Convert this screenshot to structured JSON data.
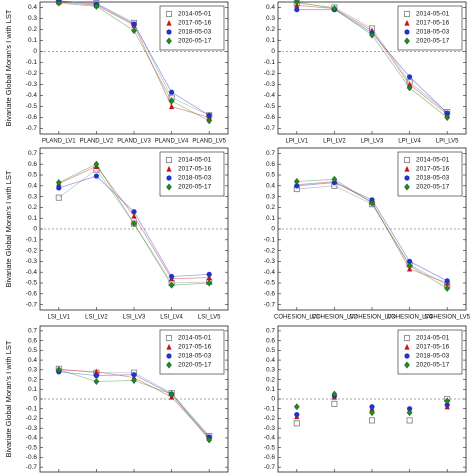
{
  "chart_data": [
    {
      "type": "line",
      "ylabel": "Bivariate Global Moran's I with LST",
      "legend": "upper right",
      "reference_line": 0,
      "categories": [
        "PLAND_LV1",
        "PLAND_LV2",
        "PLAND_LV3",
        "PLAND_LV4",
        "PLAND_LV5"
      ],
      "ylim": [
        -0.75,
        0.45
      ],
      "yticks": [
        -0.7,
        -0.6,
        -0.5,
        -0.4,
        -0.3,
        -0.2,
        -0.1,
        0,
        0.1,
        0.2,
        0.3,
        0.4
      ],
      "series": [
        {
          "name": "2014-05-01",
          "color": "#888888",
          "marker": "square",
          "values": [
            0.46,
            0.44,
            0.26,
            -0.42,
            -0.58
          ]
        },
        {
          "name": "2017-05-16",
          "color": "#cc1111",
          "marker": "triangle",
          "values": [
            0.45,
            0.42,
            0.24,
            -0.5,
            -0.6
          ]
        },
        {
          "name": "2018-05-03",
          "color": "#2233cc",
          "marker": "circle",
          "values": [
            0.46,
            0.43,
            0.25,
            -0.37,
            -0.58
          ]
        },
        {
          "name": "2020-05-17",
          "color": "#228822",
          "marker": "diamond",
          "values": [
            0.44,
            0.41,
            0.19,
            -0.45,
            -0.63
          ]
        }
      ]
    },
    {
      "type": "line",
      "legend": "upper right",
      "reference_line": 0,
      "categories": [
        "LPI_LV1",
        "LPI_LV2",
        "LPI_LV3",
        "LPI_LV4",
        "LPI_LV5"
      ],
      "ylim": [
        -0.75,
        0.45
      ],
      "yticks": [
        -0.7,
        -0.6,
        -0.5,
        -0.4,
        -0.3,
        -0.2,
        -0.1,
        0,
        0.1,
        0.2,
        0.3,
        0.4
      ],
      "series": [
        {
          "name": "2014-05-01",
          "color": "#888888",
          "marker": "square",
          "values": [
            0.44,
            0.4,
            0.21,
            -0.28,
            -0.55
          ]
        },
        {
          "name": "2017-05-16",
          "color": "#cc1111",
          "marker": "triangle",
          "values": [
            0.42,
            0.39,
            0.19,
            -0.3,
            -0.57
          ]
        },
        {
          "name": "2018-05-03",
          "color": "#2233cc",
          "marker": "circle",
          "values": [
            0.38,
            0.38,
            0.17,
            -0.23,
            -0.56
          ]
        },
        {
          "name": "2020-05-17",
          "color": "#228822",
          "marker": "diamond",
          "values": [
            0.45,
            0.39,
            0.15,
            -0.33,
            -0.6
          ]
        }
      ]
    },
    {
      "type": "line",
      "ylabel": "Bivariate Global Moran's I with LST",
      "legend": "upper right",
      "reference_line": 0,
      "categories": [
        "LSI_LV1",
        "LSI_LV2",
        "LSI_LV3",
        "LSI_LV4",
        "LSI_LV5"
      ],
      "ylim": [
        -0.75,
        0.75
      ],
      "yticks": [
        -0.7,
        -0.6,
        -0.5,
        -0.4,
        -0.3,
        -0.2,
        -0.1,
        0,
        0.1,
        0.2,
        0.3,
        0.4,
        0.5,
        0.6,
        0.7
      ],
      "series": [
        {
          "name": "2014-05-01",
          "color": "#888888",
          "marker": "square",
          "values": [
            0.29,
            0.55,
            0.05,
            -0.5,
            -0.49
          ]
        },
        {
          "name": "2017-05-16",
          "color": "#cc1111",
          "marker": "triangle",
          "values": [
            0.42,
            0.58,
            0.12,
            -0.46,
            -0.45
          ]
        },
        {
          "name": "2018-05-03",
          "color": "#2233cc",
          "marker": "circle",
          "values": [
            0.38,
            0.49,
            0.16,
            -0.44,
            -0.42
          ]
        },
        {
          "name": "2020-05-17",
          "color": "#228822",
          "marker": "diamond",
          "values": [
            0.43,
            0.6,
            0.05,
            -0.52,
            -0.5
          ]
        }
      ]
    },
    {
      "type": "line",
      "legend": "upper right",
      "reference_line": 0,
      "categories": [
        "COHESION_LV1",
        "COHESION_LV2",
        "COHESION_LV3",
        "COHESION_LV4",
        "COHESION_LV5"
      ],
      "ylim": [
        -0.75,
        0.75
      ],
      "yticks": [
        -0.7,
        -0.6,
        -0.5,
        -0.4,
        -0.3,
        -0.2,
        -0.1,
        0,
        0.1,
        0.2,
        0.3,
        0.4,
        0.5,
        0.6,
        0.7
      ],
      "series": [
        {
          "name": "2014-05-01",
          "color": "#888888",
          "marker": "square",
          "values": [
            0.37,
            0.4,
            0.23,
            -0.33,
            -0.52
          ]
        },
        {
          "name": "2017-05-16",
          "color": "#cc1111",
          "marker": "triangle",
          "values": [
            0.41,
            0.44,
            0.25,
            -0.37,
            -0.5
          ]
        },
        {
          "name": "2018-05-03",
          "color": "#2233cc",
          "marker": "circle",
          "values": [
            0.4,
            0.43,
            0.27,
            -0.3,
            -0.48
          ]
        },
        {
          "name": "2020-05-17",
          "color": "#228822",
          "marker": "diamond",
          "values": [
            0.44,
            0.46,
            0.24,
            -0.34,
            -0.55
          ]
        }
      ]
    },
    {
      "type": "line",
      "ylabel": "Bivariate Global Moran's I with LST",
      "legend": "upper right",
      "reference_line": 0,
      "categories": [
        null,
        null,
        null,
        null,
        null
      ],
      "ylim": [
        -0.75,
        0.75
      ],
      "yticks": [
        -0.7,
        -0.6,
        -0.5,
        -0.4,
        -0.3,
        -0.2,
        -0.1,
        0,
        0.1,
        0.2,
        0.3,
        0.4,
        0.5,
        0.6,
        0.7
      ],
      "series": [
        {
          "name": "2014-05-01",
          "color": "#888888",
          "marker": "square",
          "values": [
            0.31,
            0.27,
            0.27,
            0.06,
            -0.38
          ]
        },
        {
          "name": "2017-05-16",
          "color": "#cc1111",
          "marker": "triangle",
          "values": [
            0.3,
            0.28,
            0.22,
            0.02,
            -0.4
          ]
        },
        {
          "name": "2018-05-03",
          "color": "#2233cc",
          "marker": "circle",
          "values": [
            0.28,
            0.24,
            0.25,
            0.05,
            -0.39
          ]
        },
        {
          "name": "2020-05-17",
          "color": "#228822",
          "marker": "diamond",
          "values": [
            0.3,
            0.18,
            0.19,
            0.05,
            -0.42
          ]
        }
      ]
    },
    {
      "type": "scatter",
      "legend": "upper right",
      "reference_line": 0,
      "categories": [
        null,
        null,
        null,
        null,
        null
      ],
      "ylim": [
        -0.75,
        0.75
      ],
      "yticks": [
        -0.7,
        -0.6,
        -0.5,
        -0.4,
        -0.3,
        -0.2,
        -0.1,
        0,
        0.1,
        0.2,
        0.3,
        0.4,
        0.5,
        0.6,
        0.7
      ],
      "series": [
        {
          "name": "2014-05-01",
          "color": "#888888",
          "marker": "square",
          "values": [
            -0.25,
            -0.05,
            -0.22,
            -0.22,
            0
          ]
        },
        {
          "name": "2017-05-16",
          "color": "#cc1111",
          "marker": "triangle",
          "values": [
            -0.18,
            0.02,
            -0.1,
            -0.12,
            -0.08
          ]
        },
        {
          "name": "2018-05-03",
          "color": "#2233cc",
          "marker": "circle",
          "values": [
            -0.16,
            0.03,
            -0.08,
            -0.1,
            -0.06
          ]
        },
        {
          "name": "2020-05-17",
          "color": "#228822",
          "marker": "diamond",
          "values": [
            -0.08,
            0.05,
            -0.14,
            -0.14,
            -0.02
          ]
        }
      ]
    }
  ]
}
